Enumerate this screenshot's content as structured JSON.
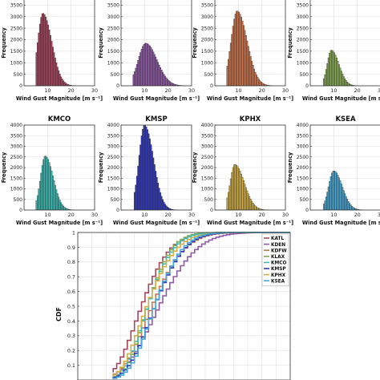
{
  "chart_data": [
    {
      "type": "bar",
      "title": "",
      "xlabel": "Wind Gust Magnitude [m s⁻¹]",
      "ylabel": "Frequency",
      "xlim": [
        0,
        30
      ],
      "ylim": [
        0,
        4000
      ],
      "xticks": [
        "10",
        "20",
        "30"
      ],
      "yticks": [
        "0",
        "500",
        "1000",
        "1500",
        "2000",
        "2500",
        "3000",
        "3500",
        "4000"
      ],
      "color": "#b54862",
      "fill": "#a8435e",
      "peak_x": 8,
      "peak_value": 3150,
      "rise": 2.2,
      "decay": 3.8,
      "x_start": 5.2,
      "x_end": 26,
      "grid": true
    },
    {
      "type": "bar",
      "title": "",
      "xlabel": "Wind Gust Magnitude [m s⁻¹]",
      "ylabel": "Frequency",
      "xlim": [
        0,
        30
      ],
      "ylim": [
        0,
        4000
      ],
      "xticks": [
        "10",
        "20",
        "30"
      ],
      "yticks": [
        "0",
        "500",
        "1000",
        "1500",
        "2000",
        "2500",
        "3000",
        "3500",
        "4000"
      ],
      "color": "#8a4d9a",
      "fill": "#9059a6",
      "peak_x": 10.5,
      "peak_value": 1850,
      "rise": 3.2,
      "decay": 4.8,
      "x_start": 5,
      "x_end": 28,
      "grid": true
    },
    {
      "type": "bar",
      "title": "",
      "xlabel": "Wind Gust Magnitude [m s⁻¹]",
      "ylabel": "Frequency",
      "xlim": [
        0,
        30
      ],
      "ylim": [
        0,
        4000
      ],
      "xticks": [
        "10",
        "20",
        "30"
      ],
      "yticks": [
        "0",
        "500",
        "1000",
        "1500",
        "2000",
        "2500",
        "3000",
        "3500",
        "4000"
      ],
      "color": "#d07a4e",
      "fill": "#cf744a",
      "peak_x": 9.5,
      "peak_value": 3250,
      "rise": 2.6,
      "decay": 4.2,
      "x_start": 5,
      "x_end": 27,
      "grid": true
    },
    {
      "type": "bar",
      "title": "",
      "xlabel": "Wind Gust Magnitude [m s⁻¹]",
      "ylabel": "Frequency",
      "xlim": [
        0,
        30
      ],
      "ylim": [
        0,
        4000
      ],
      "xticks": [
        "10",
        "20",
        "30"
      ],
      "yticks": [
        "0",
        "500",
        "1000",
        "1500",
        "2000",
        "2500",
        "3000",
        "3500",
        "4000"
      ],
      "color": "#7fa24c",
      "fill": "#86ab52",
      "peak_x": 9,
      "peak_value": 1550,
      "rise": 1.8,
      "decay": 3.2,
      "x_start": 5.5,
      "x_end": 22,
      "grid": true
    },
    {
      "type": "bar",
      "title": "KMCO",
      "xlabel": "Wind Gust Magnitude [m s⁻¹]",
      "ylabel": "Frequency",
      "xlim": [
        0,
        30
      ],
      "ylim": [
        0,
        4000
      ],
      "xticks": [
        "10",
        "20",
        "30"
      ],
      "yticks": [
        "0",
        "500",
        "1000",
        "1500",
        "2000",
        "2500",
        "3000",
        "3500",
        "4000"
      ],
      "color": "#34b2ae",
      "fill": "#3cbcb6",
      "peak_x": 9,
      "peak_value": 2550,
      "rise": 2.0,
      "decay": 3.4,
      "x_start": 5.2,
      "x_end": 24,
      "grid": true
    },
    {
      "type": "bar",
      "title": "KMSP",
      "xlabel": "Wind Gust Magnitude [m s⁻¹]",
      "ylabel": "Frequency",
      "xlim": [
        0,
        30
      ],
      "ylim": [
        0,
        4000
      ],
      "xticks": [
        "10",
        "20",
        "30"
      ],
      "yticks": [
        "0",
        "500",
        "1000",
        "1500",
        "2000",
        "2500",
        "3000",
        "3500",
        "4000"
      ],
      "color": "#2c35b8",
      "fill": "#3038c0",
      "peak_x": 10,
      "peak_value": 4000,
      "rise": 2.4,
      "decay": 3.8,
      "x_start": 5.5,
      "x_end": 26,
      "grid": true
    },
    {
      "type": "bar",
      "title": "KPHX",
      "xlabel": "Wind Gust Magnitude [m s⁻¹]",
      "ylabel": "Frequency",
      "xlim": [
        0,
        30
      ],
      "ylim": [
        0,
        4000
      ],
      "xticks": [
        "10",
        "20",
        "30"
      ],
      "yticks": [
        "0",
        "500",
        "1000",
        "1500",
        "2000",
        "2500",
        "3000",
        "3500",
        "4000"
      ],
      "color": "#c9a43a",
      "fill": "#d2ae44",
      "peak_x": 8.5,
      "peak_value": 2150,
      "rise": 2.0,
      "decay": 4.0,
      "x_start": 5,
      "x_end": 27,
      "grid": true
    },
    {
      "type": "bar",
      "title": "KSEA",
      "xlabel": "Wind Gust Magnitude [m s⁻¹]",
      "ylabel": "Frequency",
      "xlim": [
        0,
        30
      ],
      "ylim": [
        0,
        4000
      ],
      "xticks": [
        "10",
        "20",
        "30"
      ],
      "yticks": [
        "0",
        "500",
        "1000",
        "1500",
        "2000",
        "2500",
        "3000",
        "3500",
        "4000"
      ],
      "color": "#3f9fcf",
      "fill": "#47a7d6",
      "peak_x": 10,
      "peak_value": 1850,
      "rise": 2.2,
      "decay": 3.6,
      "x_start": 5.5,
      "x_end": 25,
      "grid": true
    },
    {
      "type": "line",
      "title": "",
      "xlabel": "",
      "ylabel": "CDF",
      "xlim": [
        0,
        30
      ],
      "ylim": [
        0,
        1
      ],
      "yticks": [
        "0.1",
        "0.2",
        "0.3",
        "0.4",
        "0.5",
        "0.6",
        "0.7",
        "0.8",
        "0.9",
        "1"
      ],
      "legend_position": "right",
      "grid": true,
      "step_from": 5,
      "step_to": 30,
      "step_size": 0.5,
      "series": [
        {
          "name": "KATL",
          "color": "#a8435e",
          "peak_x": 8,
          "rise": 2.2,
          "decay": 3.8
        },
        {
          "name": "KDEN",
          "color": "#9059a6",
          "peak_x": 10.5,
          "rise": 3.2,
          "decay": 4.8
        },
        {
          "name": "KDFW",
          "color": "#cf744a",
          "peak_x": 9.5,
          "rise": 2.6,
          "decay": 4.2
        },
        {
          "name": "KLAX",
          "color": "#86ab52",
          "peak_x": 9,
          "rise": 1.8,
          "decay": 3.2
        },
        {
          "name": "KMCO",
          "color": "#3cbcb6",
          "peak_x": 9,
          "rise": 2.0,
          "decay": 3.4
        },
        {
          "name": "KMSP",
          "color": "#3038c0",
          "peak_x": 10,
          "rise": 2.4,
          "decay": 3.8
        },
        {
          "name": "KPHX",
          "color": "#d2ae44",
          "peak_x": 8.5,
          "rise": 2.0,
          "decay": 4.0
        },
        {
          "name": "KSEA",
          "color": "#47a7d6",
          "peak_x": 10,
          "rise": 2.2,
          "decay": 3.6
        }
      ]
    }
  ]
}
